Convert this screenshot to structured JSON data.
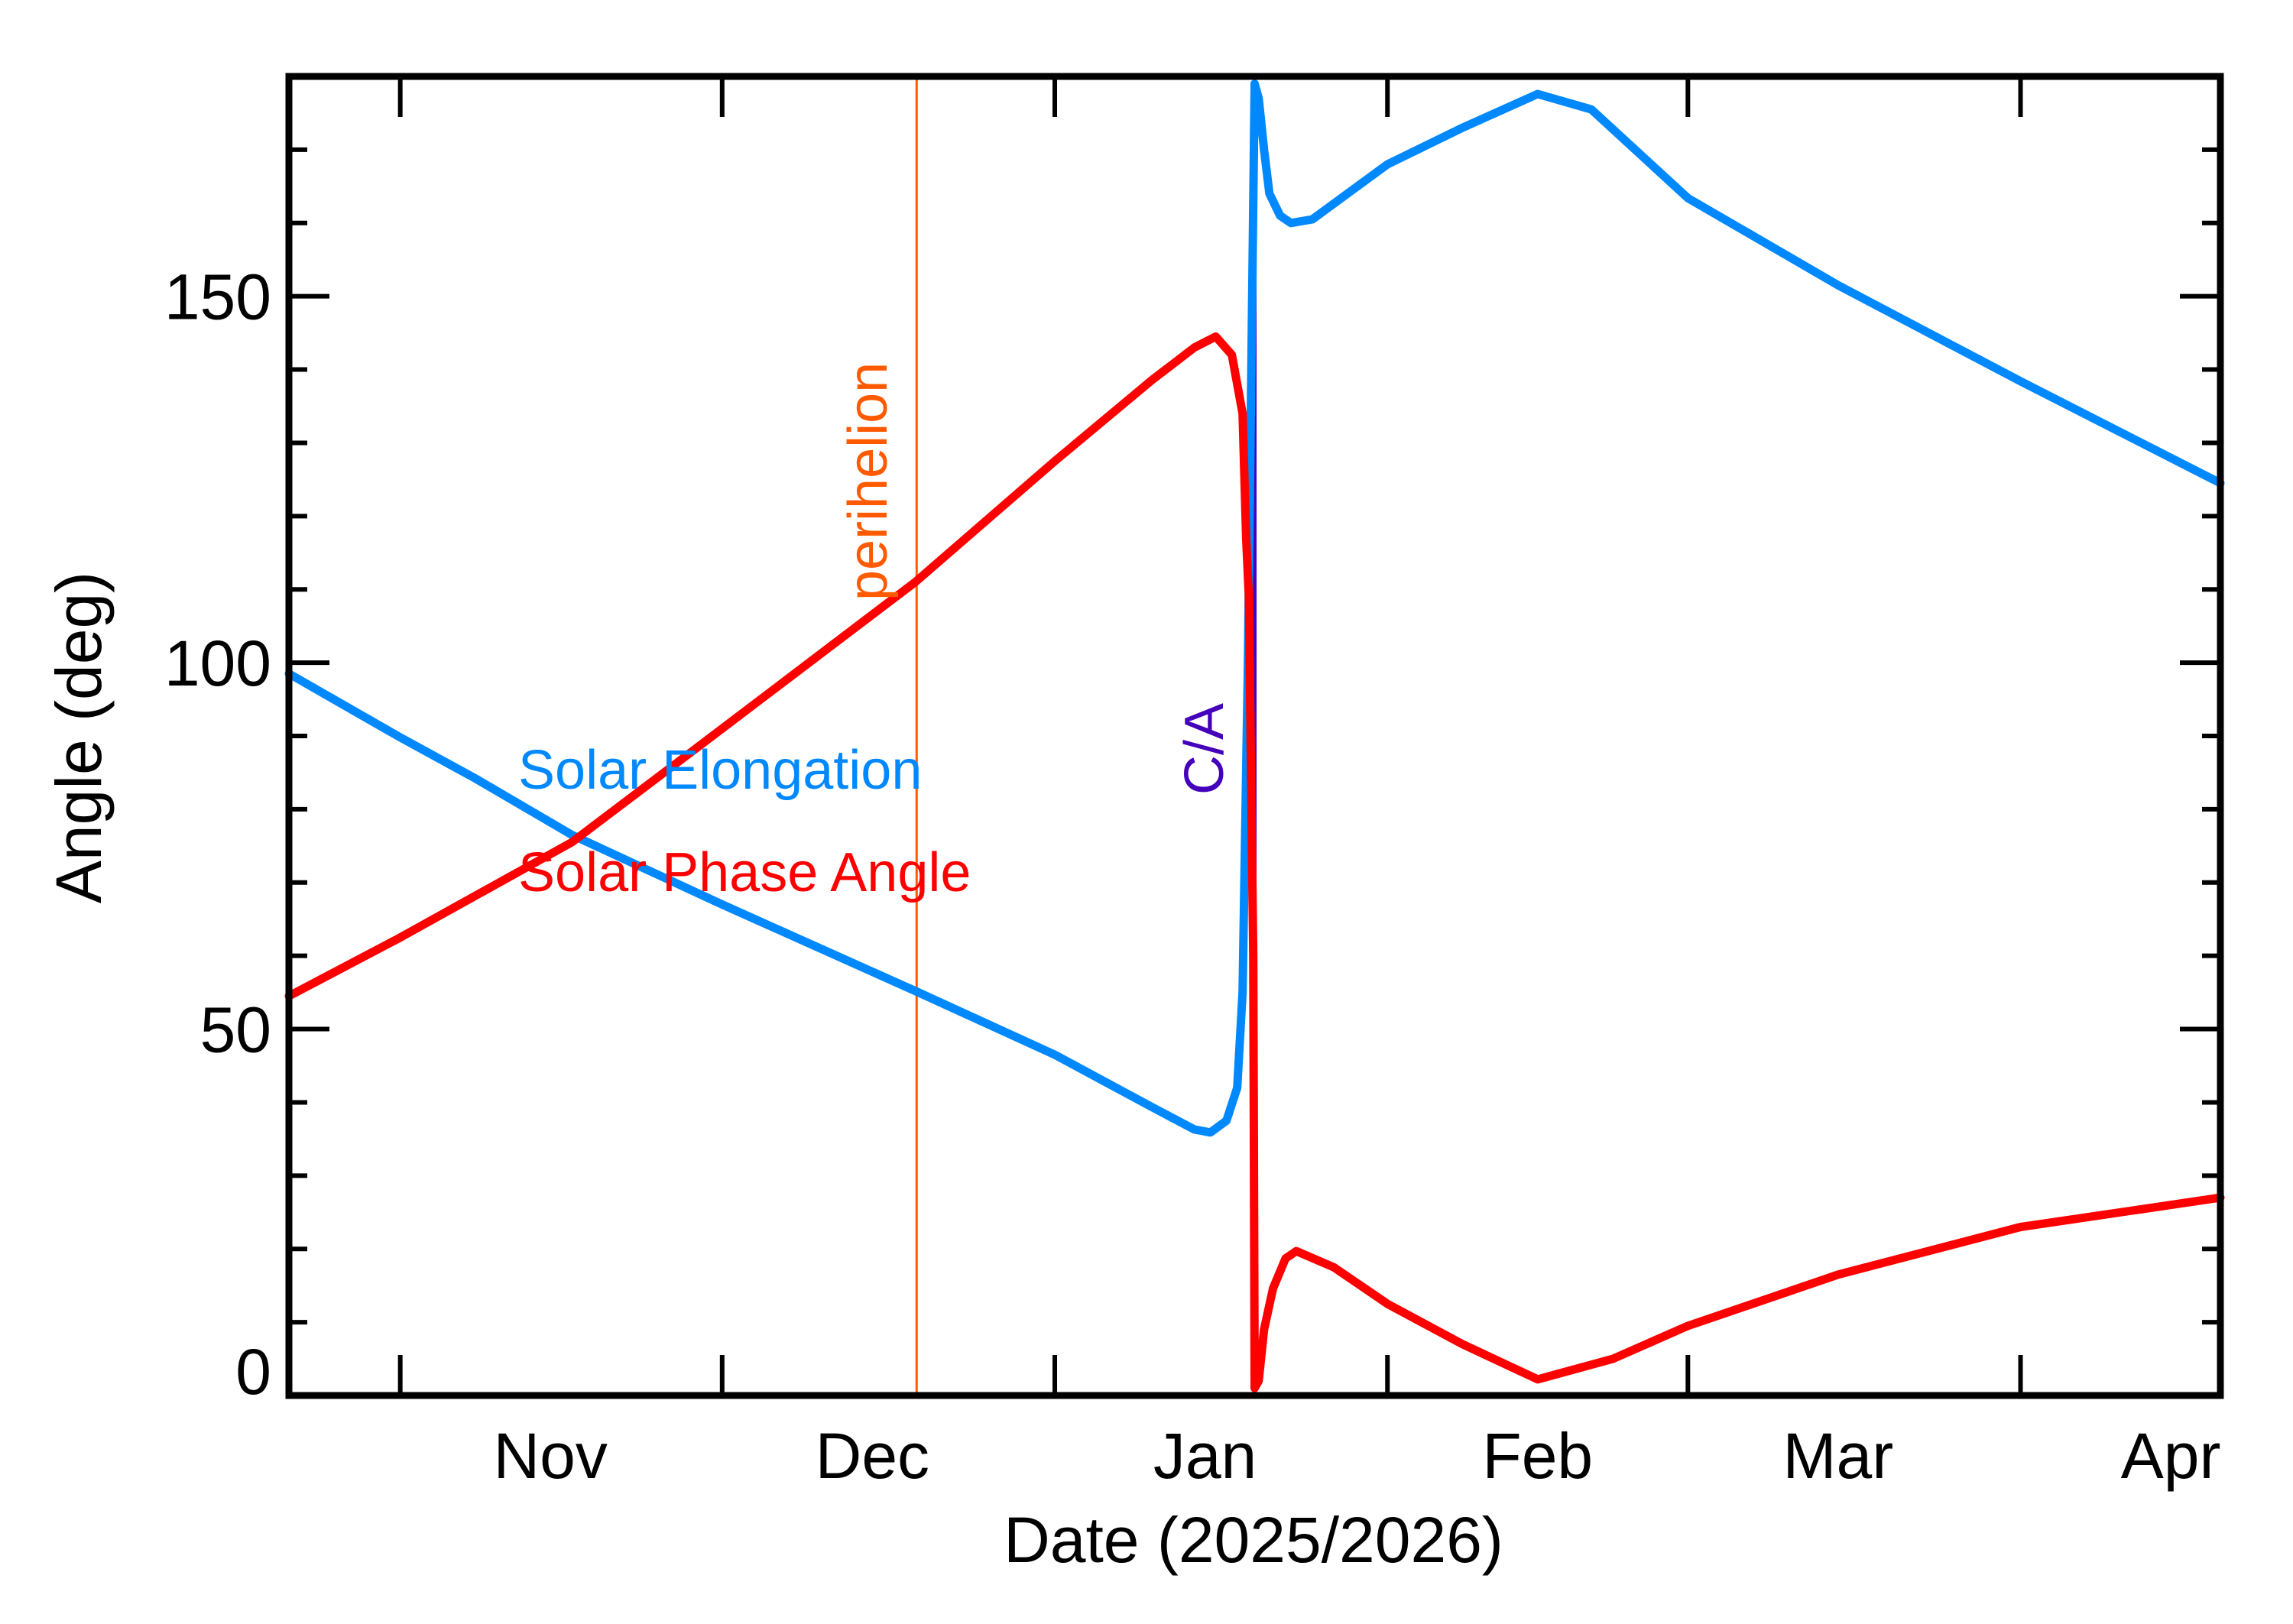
{
  "chart_data": {
    "type": "line",
    "title": "",
    "xlabel": "Date (2025/2026)",
    "ylabel": "Angle (deg)",
    "xlim": [
      "2025-10-21T15:00",
      "2026-04-19T15:00"
    ],
    "ylim": [
      0,
      180
    ],
    "grid": false,
    "y_major_ticks": [
      0,
      50,
      100,
      150
    ],
    "y_tick_labels": [
      "0",
      "50",
      "100",
      "150"
    ],
    "y_minor_step": 10,
    "x_month_ticks": [
      "2025-11-01",
      "2025-12-01",
      "2026-01-01",
      "2026-02-01",
      "2026-03-01",
      "2026-04-01"
    ],
    "x_tick_labels": [
      "Nov",
      "Dec",
      "Jan",
      "Feb",
      "Mar",
      "Apr"
    ],
    "series": [
      {
        "name": "Solar Elongation",
        "color": "#0088ff",
        "points": [
          [
            "2025-10-21T15:00",
            98.5
          ],
          [
            "2025-11-01T00:00",
            89.8
          ],
          [
            "2025-11-08T00:00",
            84.2
          ],
          [
            "2025-11-17T00:00",
            76.5
          ],
          [
            "2025-12-01T00:00",
            67.0
          ],
          [
            "2025-12-19T00:00",
            55.2
          ],
          [
            "2026-01-01T00:00",
            46.5
          ],
          [
            "2026-01-10T00:00",
            39.4
          ],
          [
            "2026-01-14T00:00",
            36.3
          ],
          [
            "2026-01-15T12:00",
            35.9
          ],
          [
            "2026-01-17T00:00",
            37.5
          ],
          [
            "2026-01-18T00:00",
            42.0
          ],
          [
            "2026-01-18T12:00",
            55.0
          ],
          [
            "2026-01-19T00:00",
            100.0
          ],
          [
            "2026-01-19T15:00",
            179.0
          ],
          [
            "2026-01-20T00:00",
            177.0
          ],
          [
            "2026-01-20T12:00",
            170.0
          ],
          [
            "2026-01-21T00:00",
            164.0
          ],
          [
            "2026-01-22T00:00",
            161.0
          ],
          [
            "2026-01-23T00:00",
            160.0
          ],
          [
            "2026-01-25T00:00",
            160.5
          ],
          [
            "2026-02-01T00:00",
            168.0
          ],
          [
            "2026-02-08T00:00",
            173.0
          ],
          [
            "2026-02-15T00:00",
            177.6
          ],
          [
            "2026-02-20T00:00",
            175.5
          ],
          [
            "2026-03-01T00:00",
            163.4
          ],
          [
            "2026-03-15T00:00",
            151.5
          ],
          [
            "2026-04-01T00:00",
            138.4
          ],
          [
            "2026-04-19T15:00",
            124.5
          ]
        ]
      },
      {
        "name": "Solar Phase Angle",
        "color": "#ff0000",
        "points": [
          [
            "2025-10-21T15:00",
            54.5
          ],
          [
            "2025-11-01T00:00",
            62.5
          ],
          [
            "2025-11-17T00:00",
            75.5
          ],
          [
            "2025-12-01T00:00",
            91.0
          ],
          [
            "2025-12-19T00:00",
            111.0
          ],
          [
            "2026-01-01T00:00",
            127.5
          ],
          [
            "2026-01-10T00:00",
            138.5
          ],
          [
            "2026-01-14T00:00",
            143.0
          ],
          [
            "2026-01-16T00:00",
            144.5
          ],
          [
            "2026-01-17T12:00",
            142.0
          ],
          [
            "2026-01-18T12:00",
            134.0
          ],
          [
            "2026-01-18T20:00",
            117.0
          ],
          [
            "2026-01-19T02:00",
            109.0
          ],
          [
            "2026-01-19T12:00",
            60.0
          ],
          [
            "2026-01-19T15:00",
            1.0
          ],
          [
            "2026-01-20T00:00",
            2.0
          ],
          [
            "2026-01-20T12:00",
            9.0
          ],
          [
            "2026-01-21T08:00",
            14.6
          ],
          [
            "2026-01-22T12:00",
            18.7
          ],
          [
            "2026-01-23T12:00",
            19.7
          ],
          [
            "2026-01-27T00:00",
            17.5
          ],
          [
            "2026-02-01T00:00",
            12.5
          ],
          [
            "2026-02-08T00:00",
            7.0
          ],
          [
            "2026-02-15T00:00",
            2.2
          ],
          [
            "2026-02-22T00:00",
            5.0
          ],
          [
            "2026-03-01T00:00",
            9.5
          ],
          [
            "2026-03-15T00:00",
            16.5
          ],
          [
            "2026-04-01T00:00",
            23.0
          ],
          [
            "2026-04-19T15:00",
            27.0
          ]
        ]
      }
    ],
    "annotations": [
      {
        "label": "perihelion",
        "date": "2025-12-19T03:00",
        "color": "#ff5a00"
      },
      {
        "label": "C/A",
        "date": "2026-01-19T15:00",
        "color": "#4400bb"
      }
    ],
    "legend": {
      "placement": "center-left",
      "entries": [
        "Solar Elongation",
        "Solar Phase Angle"
      ]
    }
  }
}
